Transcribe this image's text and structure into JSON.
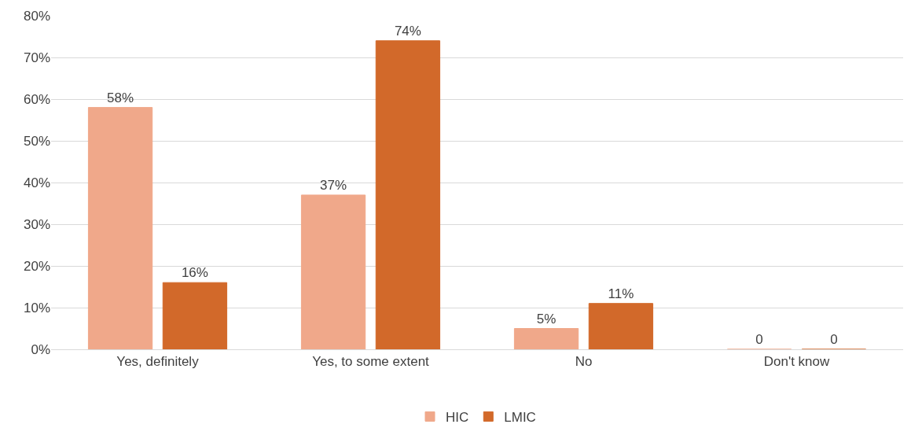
{
  "chart_data": {
    "type": "bar",
    "categories": [
      "Yes, definitely",
      "Yes, to some extent",
      "No",
      "Don't know"
    ],
    "series": [
      {
        "name": "HIC",
        "color": "#f0a88a",
        "values": [
          58,
          37,
          5,
          0
        ],
        "value_labels": [
          "58%",
          "37%",
          "5%",
          "0"
        ]
      },
      {
        "name": "LMIC",
        "color": "#d2692a",
        "values": [
          16,
          74,
          11,
          0
        ],
        "value_labels": [
          "16%",
          "74%",
          "11%",
          "0"
        ]
      }
    ],
    "ylim": [
      0,
      80
    ],
    "yticks": [
      {
        "value": 0,
        "label": "0%"
      },
      {
        "value": 10,
        "label": "10%"
      },
      {
        "value": 20,
        "label": "20%"
      },
      {
        "value": 30,
        "label": "30%"
      },
      {
        "value": 40,
        "label": "40%"
      },
      {
        "value": 50,
        "label": "50%"
      },
      {
        "value": 60,
        "label": "60%"
      },
      {
        "value": 70,
        "label": "70%"
      },
      {
        "value": 80,
        "label": "80%"
      }
    ],
    "grid": "y",
    "legend": "bottom"
  }
}
